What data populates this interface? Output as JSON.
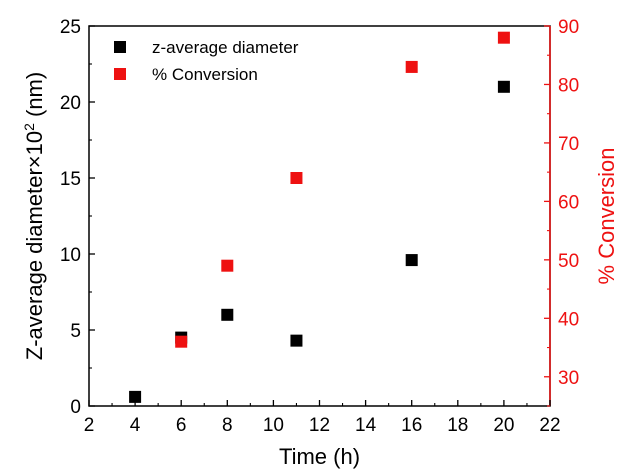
{
  "chart_data": {
    "type": "scatter",
    "xlabel": "Time (h)",
    "ylabel": "Z-average diameter×10",
    "ylabel_sup": "2",
    "ylabel_unit": " (nm)",
    "y2label": "% Conversion",
    "xlim": [
      2,
      22
    ],
    "ylim": [
      0,
      25
    ],
    "y2lim": [
      25,
      90
    ],
    "xticks": [
      "2",
      "4",
      "6",
      "8",
      "10",
      "12",
      "14",
      "16",
      "18",
      "20",
      "22"
    ],
    "yticks": [
      "0",
      "5",
      "10",
      "15",
      "20",
      "25"
    ],
    "y2ticks": [
      "30",
      "40",
      "50",
      "60",
      "70",
      "80",
      "90"
    ],
    "legend_position": "top-left",
    "series": [
      {
        "name": "z-average diameter",
        "axis": "left",
        "color": "#000000",
        "x": [
          4,
          6,
          8,
          11,
          16,
          20
        ],
        "y": [
          0.6,
          4.5,
          6.0,
          4.3,
          9.6,
          21.0
        ]
      },
      {
        "name": "% Conversion",
        "axis": "right",
        "color": "#ee1111",
        "x": [
          6,
          8,
          11,
          16,
          20
        ],
        "y": [
          36,
          49,
          64,
          83,
          88
        ]
      }
    ]
  }
}
